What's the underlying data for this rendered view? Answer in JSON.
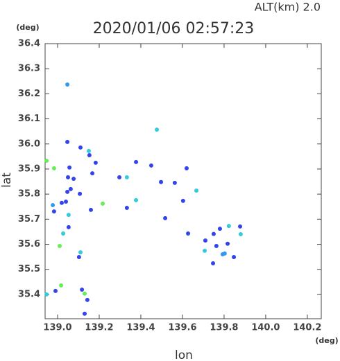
{
  "chart_data": {
    "type": "scatter",
    "title": "2020/01/06 02:57:23",
    "altitude_label": "ALT(km)  2.0",
    "y_unit": "(deg)",
    "x_unit": "(deg)",
    "ylabel": "lat",
    "xlabel": "lon",
    "xlim": [
      138.94,
      140.267
    ],
    "ylim": [
      35.303,
      36.4
    ],
    "xticks": [
      {
        "value": 139.0,
        "label": "139.0"
      },
      139.2,
      139.4,
      139.6,
      139.8,
      {
        "value": 140.0,
        "label": "140.0"
      },
      140.2
    ],
    "yticks": [
      35.4,
      35.5,
      35.6,
      35.7,
      35.8,
      35.9,
      {
        "value": 36.0,
        "label": "36.0"
      },
      36.1,
      36.2,
      36.3,
      36.4
    ],
    "marker_size": 3,
    "x": [
      139.047,
      139.047,
      139.11,
      139.15,
      139.153,
      139.183,
      138.947,
      138.983,
      139.057,
      139.05,
      139.077,
      139.063,
      139.047,
      139.107,
      138.977,
      139.02,
      139.04,
      138.983,
      139.053,
      139.027,
      139.053,
      139.01,
      139.11,
      139.103,
      139.017,
      138.99,
      138.947,
      139.117,
      139.13,
      139.143,
      139.13,
      139.167,
      139.217,
      139.16,
      139.297,
      139.333,
      139.333,
      139.377,
      139.377,
      139.477,
      139.497,
      139.45,
      139.517,
      139.563,
      139.603,
      139.62,
      139.667,
      139.627,
      139.71,
      139.707,
      139.75,
      139.763,
      139.793,
      139.823,
      139.78,
      139.877,
      139.88,
      139.847,
      139.817,
      139.747,
      139.803
    ],
    "values": [
      36.237,
      36.008,
      35.986,
      35.972,
      35.955,
      35.925,
      35.933,
      35.903,
      35.906,
      35.867,
      35.861,
      35.82,
      35.809,
      35.801,
      35.756,
      35.765,
      35.77,
      35.731,
      35.717,
      35.643,
      35.668,
      35.593,
      35.568,
      35.549,
      35.436,
      35.414,
      35.4,
      35.419,
      35.403,
      35.378,
      35.323,
      35.883,
      35.762,
      35.737,
      35.867,
      35.867,
      35.745,
      35.928,
      35.776,
      36.057,
      35.848,
      35.914,
      35.704,
      35.845,
      35.773,
      35.903,
      35.814,
      35.643,
      35.615,
      35.574,
      35.641,
      35.593,
      35.56,
      35.673,
      35.662,
      35.671,
      35.64,
      35.549,
      35.602,
      35.524,
      35.563
    ],
    "colors": [
      "#3399ee",
      "#3344ee",
      "#3344ee",
      "#33ccdd",
      "#3344ee",
      "#3344ee",
      "#66ee55",
      "#66ee55",
      "#3344ee",
      "#3344ee",
      "#3344ee",
      "#3344ee",
      "#3344ee",
      "#3344ee",
      "#3399ee",
      "#3344ee",
      "#3344ee",
      "#3344ee",
      "#33ccdd",
      "#33ccdd",
      "#3344ee",
      "#66ee55",
      "#33ccdd",
      "#3344ee",
      "#66ee55",
      "#3344ee",
      "#33ccdd",
      "#3344ee",
      "#66ee55",
      "#3344ee",
      "#3344ee",
      "#3344ee",
      "#66ee55",
      "#3344ee",
      "#3344ee",
      "#33ccdd",
      "#3344ee",
      "#3344ee",
      "#33ccdd",
      "#33ccdd",
      "#3344ee",
      "#3344ee",
      "#3344ee",
      "#3344ee",
      "#3344ee",
      "#3344ee",
      "#33ccdd",
      "#3344ee",
      "#3344ee",
      "#33ccdd",
      "#3344ee",
      "#3344ee",
      "#3399ee",
      "#33ccdd",
      "#3344ee",
      "#3344ee",
      "#33ccdd",
      "#3344ee",
      "#3344ee",
      "#3344ee",
      "#3399ee"
    ]
  }
}
